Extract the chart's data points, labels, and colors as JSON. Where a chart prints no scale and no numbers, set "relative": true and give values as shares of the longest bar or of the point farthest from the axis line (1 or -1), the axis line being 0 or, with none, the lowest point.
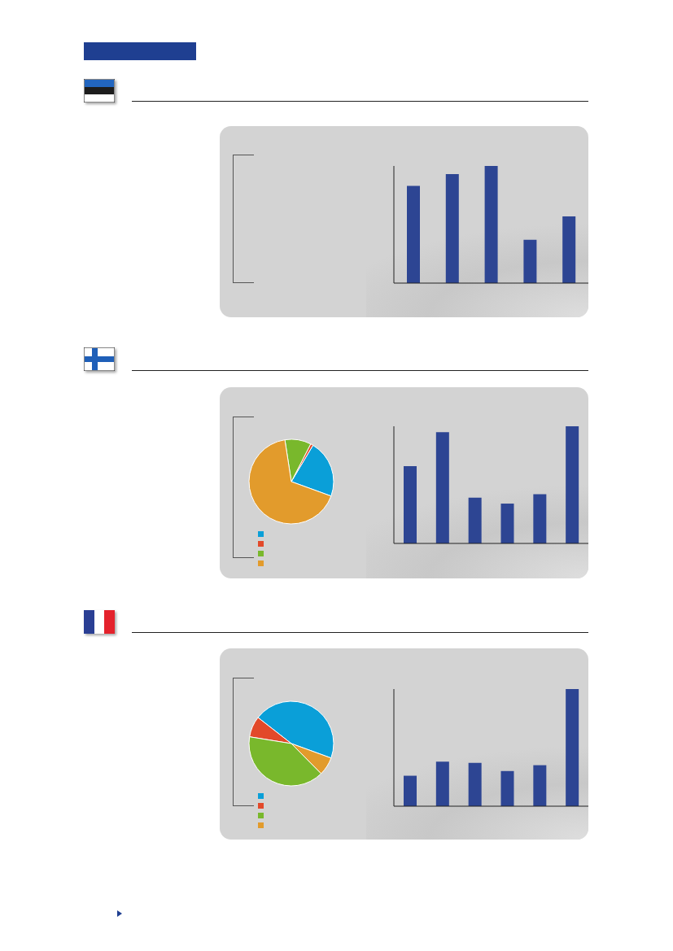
{
  "chart_data": [
    {
      "type": "bar",
      "categories": [
        null,
        null,
        null,
        null,
        null
      ],
      "values": [
        0.83,
        0.93,
        1,
        0.37,
        0.57
      ],
      "color": "#2d4593",
      "relative": true
    },
    {
      "type": "pie",
      "categories": [
        null,
        null,
        null,
        null
      ],
      "values": [
        22,
        1,
        10,
        67
      ],
      "colors": [
        "#0a9fd8",
        "#e2492a",
        "#79b82c",
        "#e29b2c"
      ]
    },
    {
      "type": "bar",
      "categories": [
        null,
        null,
        null,
        null,
        null,
        null
      ],
      "values": [
        0.66,
        0.95,
        0.39,
        0.34,
        0.42,
        1
      ],
      "color": "#2d4593",
      "relative": true
    },
    {
      "type": "pie",
      "categories": [
        null,
        null,
        null,
        null
      ],
      "values": [
        45,
        8,
        40,
        7
      ],
      "colors": [
        "#0a9fd8",
        "#e2492a",
        "#79b82c",
        "#e29b2c"
      ]
    },
    {
      "type": "bar",
      "categories": [
        null,
        null,
        null,
        null,
        null,
        null
      ],
      "values": [
        0.26,
        0.38,
        0.37,
        0.3,
        0.35,
        1
      ],
      "color": "#2d4593",
      "relative": true
    }
  ]
}
